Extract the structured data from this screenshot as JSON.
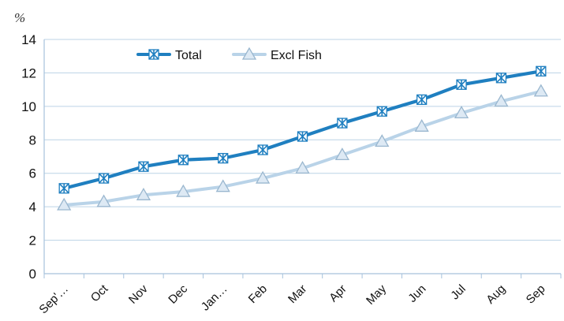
{
  "chart_data": {
    "type": "line",
    "ylabel": "%",
    "ylim": [
      0,
      14
    ],
    "y_ticks": [
      "0",
      "2",
      "4",
      "6",
      "8",
      "10",
      "12",
      "14"
    ],
    "categories": [
      "Sep'…",
      "Oct",
      "Nov",
      "Dec",
      "Jan…",
      "Feb",
      "Mar",
      "Apr",
      "May",
      "Jun",
      "Jul",
      "Aug",
      "Sep"
    ],
    "series": [
      {
        "name": "Total",
        "color": "#1f7fc0",
        "marker": "asterisk-box",
        "values": [
          5.1,
          5.7,
          6.4,
          6.8,
          6.9,
          7.4,
          8.2,
          9.0,
          9.7,
          10.4,
          11.3,
          11.7,
          12.1
        ]
      },
      {
        "name": "Excl Fish",
        "color": "#b9d3e8",
        "marker": "triangle",
        "values": [
          4.1,
          4.3,
          4.7,
          4.9,
          5.2,
          5.7,
          6.3,
          7.1,
          7.9,
          8.8,
          9.6,
          10.3,
          10.9
        ]
      }
    ],
    "grid": "horizontal",
    "legend": "top-center",
    "axis_color": "#a6c2dc",
    "grid_color": "#bcd3e6"
  }
}
